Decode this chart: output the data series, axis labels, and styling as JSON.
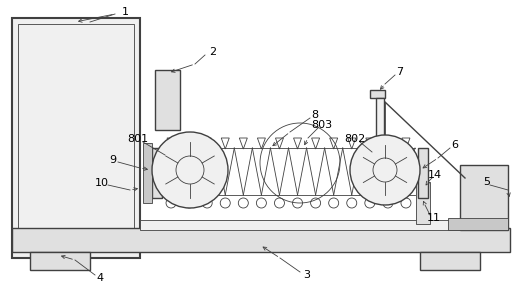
{
  "bg_color": "#ffffff",
  "line_color": "#404040",
  "fill_light": "#f0f0f0",
  "fill_mid": "#e0e0e0",
  "fill_dark": "#c8c8c8",
  "lw_main": 1.0,
  "lw_thin": 0.6,
  "lw_thick": 1.5,
  "figsize": [
    5.3,
    2.94
  ],
  "dpi": 100,
  "coords": {
    "xlim": [
      0,
      530
    ],
    "ylim": [
      0,
      294
    ]
  }
}
